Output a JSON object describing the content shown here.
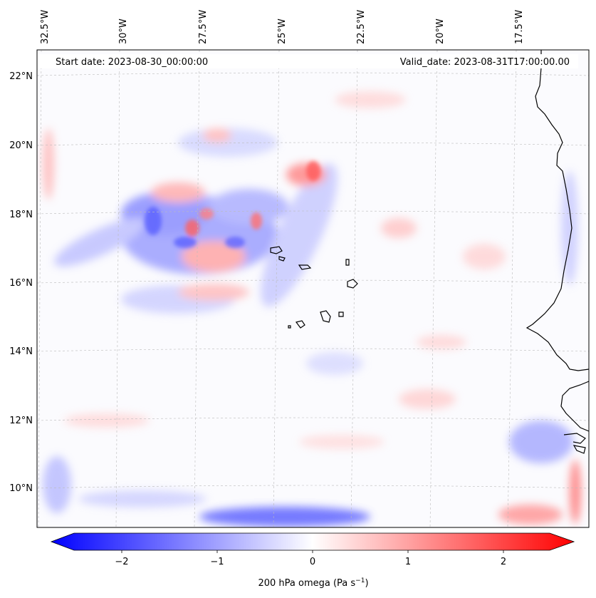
{
  "header": {
    "start_date": "Start date: 2023-08-30_00:00:00",
    "valid_date": "Valid_date: 2023-08-31T17:00:00.00"
  },
  "lon_labels": [
    "32.5°W",
    "30°W",
    "27.5°W",
    "25°W",
    "22.5°W",
    "20°W",
    "17.5°W"
  ],
  "lat_labels": [
    "22°N",
    "20°N",
    "18°N",
    "16°N",
    "14°N",
    "12°N",
    "10°N"
  ],
  "colorbar": {
    "label": "200 hPa omega (Pa s",
    "label_sup": "−1",
    "label_end": ")",
    "ticks": [
      "−2",
      "−1",
      "0",
      "1",
      "2"
    ],
    "min_color": "#0000ff",
    "mid_color": "#ffffff",
    "max_color": "#ff0000"
  }
}
